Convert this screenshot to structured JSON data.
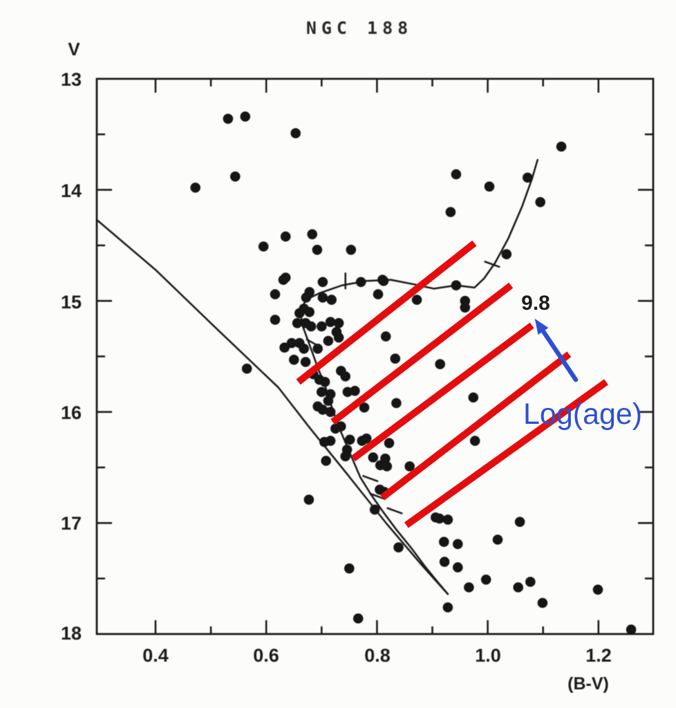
{
  "figure": {
    "title": "NGC 188",
    "y_axis": {
      "label": "V",
      "tick_labels": [
        "13",
        "14",
        "15",
        "16",
        "17",
        "18"
      ],
      "major_ticks": [
        14,
        15,
        16,
        17
      ],
      "minor_ticks": [
        13.5,
        14.5,
        15.5,
        16.5,
        17.5
      ]
    },
    "x_axis": {
      "label": "(B-V)",
      "tick_labels": [
        "0.4",
        "0.6",
        "0.8",
        "1.0",
        "1.2"
      ],
      "major_ticks": [
        0.4,
        0.6,
        0.8,
        1.0,
        1.2
      ],
      "minor_ticks": [
        0.5,
        0.7,
        0.9,
        1.1
      ]
    }
  },
  "chart_data": {
    "type": "scatter",
    "title": "NGC 188",
    "xlabel": "(B-V)",
    "ylabel": "V",
    "xlim": [
      0.293,
      1.3
    ],
    "ylim": [
      18,
      13
    ],
    "y_inverted": true,
    "grid": false,
    "points_bv_v": [
      [
        0.531,
        13.36
      ],
      [
        0.562,
        13.34
      ],
      [
        0.653,
        13.49
      ],
      [
        0.544,
        13.88
      ],
      [
        0.472,
        13.98
      ],
      [
        1.133,
        13.61
      ],
      [
        0.943,
        13.86
      ],
      [
        1.003,
        13.97
      ],
      [
        0.933,
        14.2
      ],
      [
        1.095,
        14.11
      ],
      [
        1.072,
        13.89
      ],
      [
        1.034,
        14.58
      ],
      [
        0.635,
        14.42
      ],
      [
        0.595,
        14.51
      ],
      [
        0.683,
        14.4
      ],
      [
        0.692,
        14.54
      ],
      [
        0.753,
        14.54
      ],
      [
        0.635,
        14.79
      ],
      [
        0.616,
        14.94
      ],
      [
        0.631,
        14.81
      ],
      [
        0.702,
        14.83
      ],
      [
        0.771,
        14.83
      ],
      [
        0.81,
        14.81
      ],
      [
        0.802,
        14.94
      ],
      [
        0.872,
        14.99
      ],
      [
        0.812,
        14.82
      ],
      [
        0.943,
        14.86
      ],
      [
        0.959,
        15.0
      ],
      [
        0.959,
        15.06
      ],
      [
        0.672,
        14.97
      ],
      [
        0.678,
        14.92
      ],
      [
        0.702,
        14.97
      ],
      [
        0.718,
        14.99
      ],
      [
        0.668,
        15.07
      ],
      [
        0.66,
        15.11
      ],
      [
        0.678,
        15.1
      ],
      [
        0.716,
        15.19
      ],
      [
        0.731,
        15.2
      ],
      [
        0.616,
        15.17
      ],
      [
        0.656,
        15.2
      ],
      [
        0.671,
        15.2
      ],
      [
        0.681,
        15.23
      ],
      [
        0.7,
        15.23
      ],
      [
        0.727,
        15.28
      ],
      [
        0.816,
        15.32
      ],
      [
        0.646,
        15.38
      ],
      [
        0.66,
        15.38
      ],
      [
        0.633,
        15.42
      ],
      [
        0.668,
        15.43
      ],
      [
        0.693,
        15.43
      ],
      [
        0.712,
        15.36
      ],
      [
        0.731,
        15.33
      ],
      [
        0.833,
        15.52
      ],
      [
        0.914,
        15.57
      ],
      [
        0.65,
        15.53
      ],
      [
        0.671,
        15.55
      ],
      [
        0.685,
        15.66
      ],
      [
        0.696,
        15.71
      ],
      [
        0.706,
        15.73
      ],
      [
        0.7,
        15.82
      ],
      [
        0.716,
        15.84
      ],
      [
        0.735,
        15.63
      ],
      [
        0.743,
        15.68
      ],
      [
        0.747,
        15.82
      ],
      [
        0.76,
        15.81
      ],
      [
        0.777,
        15.96
      ],
      [
        0.712,
        15.9
      ],
      [
        0.693,
        15.95
      ],
      [
        0.702,
        15.98
      ],
      [
        0.716,
        16.0
      ],
      [
        0.835,
        15.92
      ],
      [
        0.565,
        15.61
      ],
      [
        0.974,
        15.87
      ],
      [
        0.735,
        16.13
      ],
      [
        0.725,
        16.15
      ],
      [
        0.705,
        16.27
      ],
      [
        0.716,
        16.26
      ],
      [
        0.751,
        16.25
      ],
      [
        0.773,
        16.26
      ],
      [
        0.746,
        16.34
      ],
      [
        0.781,
        16.24
      ],
      [
        0.822,
        16.28
      ],
      [
        0.859,
        16.49
      ],
      [
        0.818,
        16.49
      ],
      [
        0.708,
        16.44
      ],
      [
        0.743,
        16.4
      ],
      [
        0.793,
        16.41
      ],
      [
        0.806,
        16.48
      ],
      [
        0.815,
        16.42
      ],
      [
        0.977,
        16.26
      ],
      [
        0.677,
        16.79
      ],
      [
        0.805,
        16.7
      ],
      [
        0.813,
        16.72
      ],
      [
        0.796,
        16.88
      ],
      [
        0.906,
        16.95
      ],
      [
        0.913,
        16.96
      ],
      [
        0.928,
        16.97
      ],
      [
        0.839,
        17.22
      ],
      [
        0.921,
        17.17
      ],
      [
        0.946,
        17.19
      ],
      [
        1.018,
        17.15
      ],
      [
        1.058,
        16.99
      ],
      [
        0.922,
        17.35
      ],
      [
        0.946,
        17.4
      ],
      [
        0.75,
        17.41
      ],
      [
        0.766,
        17.86
      ],
      [
        0.928,
        17.76
      ],
      [
        0.966,
        17.58
      ],
      [
        0.997,
        17.51
      ],
      [
        1.055,
        17.58
      ],
      [
        1.077,
        17.53
      ],
      [
        1.099,
        17.72
      ],
      [
        1.199,
        17.6
      ],
      [
        1.259,
        17.96
      ]
    ],
    "main_sequence_line": [
      [
        0.294,
        14.27
      ],
      [
        0.4,
        14.72
      ],
      [
        0.506,
        15.23
      ],
      [
        0.622,
        15.78
      ],
      [
        0.678,
        16.14
      ],
      [
        0.743,
        16.54
      ],
      [
        0.818,
        17.01
      ],
      [
        0.881,
        17.38
      ],
      [
        0.928,
        17.64
      ]
    ],
    "isochrone_curve": [
      [
        1.09,
        13.73
      ],
      [
        1.08,
        13.9
      ],
      [
        1.062,
        14.15
      ],
      [
        1.037,
        14.44
      ],
      [
        1.013,
        14.66
      ],
      [
        0.993,
        14.8
      ],
      [
        0.976,
        14.88
      ],
      [
        0.943,
        14.86
      ],
      [
        0.903,
        14.89
      ],
      [
        0.866,
        14.85
      ],
      [
        0.825,
        14.81
      ],
      [
        0.781,
        14.82
      ],
      [
        0.737,
        14.86
      ],
      [
        0.696,
        14.93
      ],
      [
        0.672,
        14.99
      ],
      [
        0.661,
        15.09
      ],
      [
        0.666,
        15.23
      ],
      [
        0.68,
        15.42
      ],
      [
        0.693,
        15.6
      ],
      [
        0.706,
        15.76
      ],
      [
        0.72,
        15.98
      ],
      [
        0.735,
        16.18
      ],
      [
        0.751,
        16.37
      ],
      [
        0.77,
        16.59
      ],
      [
        0.79,
        16.75
      ],
      [
        0.811,
        16.9
      ],
      [
        0.835,
        17.06
      ],
      [
        0.861,
        17.22
      ],
      [
        0.888,
        17.4
      ],
      [
        0.911,
        17.54
      ],
      [
        0.928,
        17.64
      ]
    ],
    "isochrone_tick_marks": [
      {
        "bv": 0.743,
        "v": 14.82,
        "angle": 90
      },
      {
        "bv": 0.685,
        "v": 15.38,
        "angle": 30
      },
      {
        "bv": 0.788,
        "v": 16.6,
        "angle": 20
      },
      {
        "bv": 0.801,
        "v": 16.76,
        "angle": 20
      },
      {
        "bv": 0.832,
        "v": 16.89,
        "angle": 20
      },
      {
        "bv": 1.008,
        "v": 14.67,
        "angle": 20
      }
    ],
    "red_lines": [
      [
        [
          0.658,
          15.73
        ],
        [
          0.976,
          14.48
        ]
      ],
      [
        [
          0.72,
          16.09
        ],
        [
          1.042,
          14.86
        ]
      ],
      [
        [
          0.757,
          16.42
        ],
        [
          1.08,
          15.22
        ]
      ],
      [
        [
          0.81,
          16.77
        ],
        [
          1.147,
          15.48
        ]
      ],
      [
        [
          0.853,
          17.02
        ],
        [
          1.214,
          15.73
        ]
      ]
    ],
    "annotations": {
      "age_value": {
        "text": "9.8",
        "color": "#1c1c1c"
      },
      "log_age": {
        "text": "Log(age)",
        "color": "#2e4fd2"
      },
      "arrow": {
        "tail": [
          1.159,
          15.71
        ],
        "head": [
          1.085,
          15.16
        ],
        "color": "#2e4fd2"
      }
    },
    "colors": {
      "ink": "#1a1a1a",
      "red": "#e41010",
      "blue": "#2e4fd2",
      "points": "#161616"
    }
  }
}
